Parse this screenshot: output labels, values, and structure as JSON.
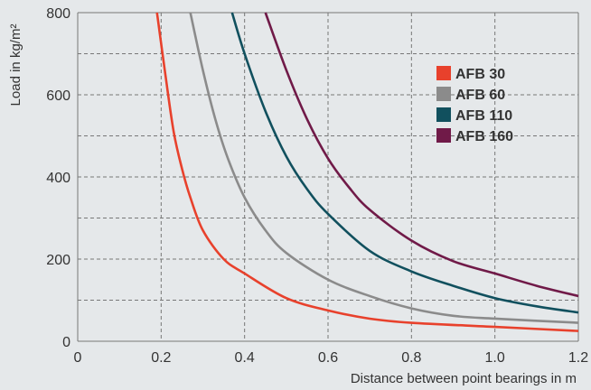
{
  "chart_data": {
    "type": "line",
    "title": "",
    "xlabel": "Distance between point bearings in m",
    "ylabel": "Load in kg/m²",
    "xlim": [
      0,
      1.2
    ],
    "ylim": [
      0,
      800
    ],
    "xticks": [
      "0",
      "0.2",
      "0.4",
      "0.6",
      "0.8",
      "1.0",
      "1.2"
    ],
    "xtick_values": [
      0,
      0.2,
      0.4,
      0.6,
      0.8,
      1.0,
      1.2
    ],
    "yticks": [
      "0",
      "200",
      "400",
      "600",
      "800"
    ],
    "ytick_values": [
      0,
      200,
      400,
      600,
      800
    ],
    "grid": true,
    "legend_position": "top-right",
    "series": [
      {
        "name": "AFB 30",
        "color": "#e8412c",
        "x": [
          0.19,
          0.21,
          0.23,
          0.25,
          0.27,
          0.3,
          0.35,
          0.4,
          0.5,
          0.6,
          0.7,
          0.8,
          1.0,
          1.2
        ],
        "y": [
          800,
          650,
          510,
          420,
          350,
          270,
          200,
          165,
          105,
          75,
          55,
          45,
          35,
          25
        ]
      },
      {
        "name": "AFB 60",
        "color": "#8b8b8b",
        "x": [
          0.27,
          0.3,
          0.33,
          0.36,
          0.4,
          0.45,
          0.5,
          0.6,
          0.7,
          0.8,
          0.9,
          1.0,
          1.2
        ],
        "y": [
          800,
          660,
          540,
          445,
          350,
          270,
          215,
          150,
          110,
          80,
          62,
          55,
          45
        ]
      },
      {
        "name": "AFB 110",
        "color": "#11505e",
        "x": [
          0.37,
          0.4,
          0.45,
          0.5,
          0.55,
          0.6,
          0.7,
          0.8,
          0.9,
          1.0,
          1.1,
          1.2
        ],
        "y": [
          800,
          700,
          560,
          450,
          370,
          310,
          220,
          170,
          135,
          105,
          85,
          70
        ]
      },
      {
        "name": "AFB 160",
        "color": "#701a48",
        "x": [
          0.45,
          0.5,
          0.55,
          0.6,
          0.65,
          0.7,
          0.8,
          0.9,
          1.0,
          1.1,
          1.2
        ],
        "y": [
          800,
          660,
          540,
          445,
          375,
          320,
          245,
          195,
          165,
          135,
          110
        ]
      }
    ]
  }
}
